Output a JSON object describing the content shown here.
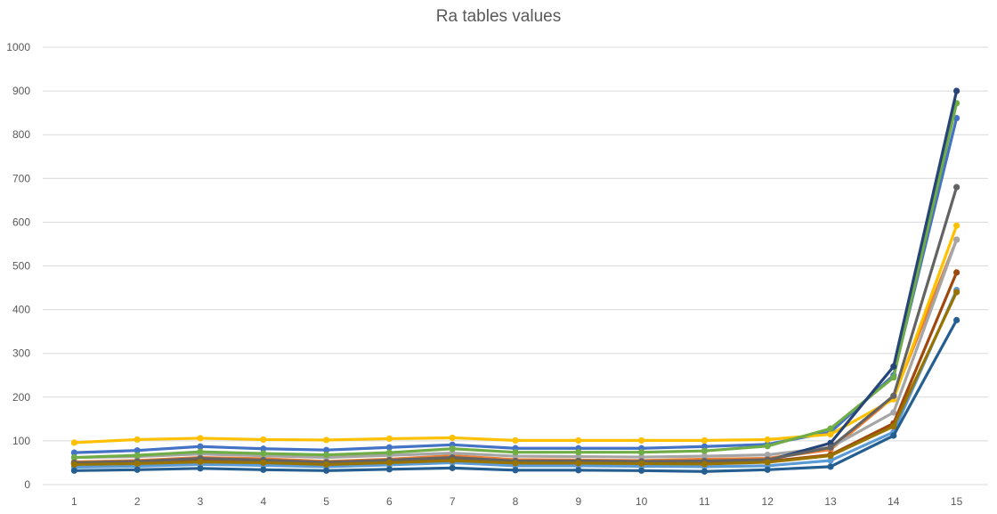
{
  "chart_data": {
    "type": "line",
    "title": "Ra tables values",
    "xlabel": "",
    "ylabel": "",
    "ylim": [
      0,
      1000
    ],
    "yticks": [
      0,
      100,
      200,
      300,
      400,
      500,
      600,
      700,
      800,
      900,
      1000
    ],
    "grid": true,
    "legend": "none",
    "categories": [
      "1",
      "2",
      "3",
      "4",
      "5",
      "6",
      "7",
      "8",
      "9",
      "10",
      "11",
      "12",
      "13",
      "14",
      "15"
    ],
    "series": [
      {
        "color": "#4472C4",
        "values": [
          73,
          78,
          87,
          82,
          79,
          85,
          91,
          83,
          83,
          83,
          87,
          92,
          120,
          250,
          838
        ]
      },
      {
        "color": "#ED7D31",
        "values": [
          52,
          55,
          62,
          59,
          53,
          58,
          66,
          57,
          56,
          55,
          58,
          60,
          80,
          200,
          560
        ]
      },
      {
        "color": "#A5A5A5",
        "values": [
          62,
          64,
          70,
          66,
          62,
          67,
          72,
          65,
          64,
          63,
          65,
          68,
          85,
          165,
          560
        ]
      },
      {
        "color": "#FFC000",
        "values": [
          96,
          103,
          106,
          103,
          102,
          105,
          107,
          101,
          101,
          101,
          101,
          103,
          115,
          195,
          592
        ]
      },
      {
        "color": "#5B9BD5",
        "values": [
          40,
          42,
          46,
          44,
          41,
          45,
          50,
          43,
          43,
          42,
          41,
          43,
          55,
          120,
          445
        ]
      },
      {
        "color": "#70AD47",
        "values": [
          62,
          67,
          75,
          71,
          68,
          73,
          82,
          74,
          74,
          74,
          77,
          88,
          128,
          245,
          872
        ]
      },
      {
        "color": "#264478",
        "values": [
          49,
          52,
          56,
          54,
          49,
          53,
          58,
          52,
          52,
          51,
          52,
          55,
          95,
          270,
          900
        ]
      },
      {
        "color": "#9E480E",
        "values": [
          47,
          50,
          54,
          51,
          47,
          51,
          56,
          50,
          50,
          49,
          48,
          53,
          68,
          140,
          485
        ]
      },
      {
        "color": "#636363",
        "values": [
          50,
          53,
          60,
          56,
          51,
          56,
          62,
          54,
          54,
          53,
          54,
          57,
          85,
          203,
          680
        ]
      },
      {
        "color": "#997300",
        "values": [
          46,
          48,
          52,
          50,
          46,
          50,
          55,
          49,
          49,
          48,
          47,
          51,
          66,
          133,
          440
        ]
      },
      {
        "color": "#255E91",
        "values": [
          32,
          34,
          37,
          34,
          32,
          35,
          38,
          33,
          33,
          32,
          30,
          34,
          41,
          112,
          376
        ]
      }
    ]
  }
}
